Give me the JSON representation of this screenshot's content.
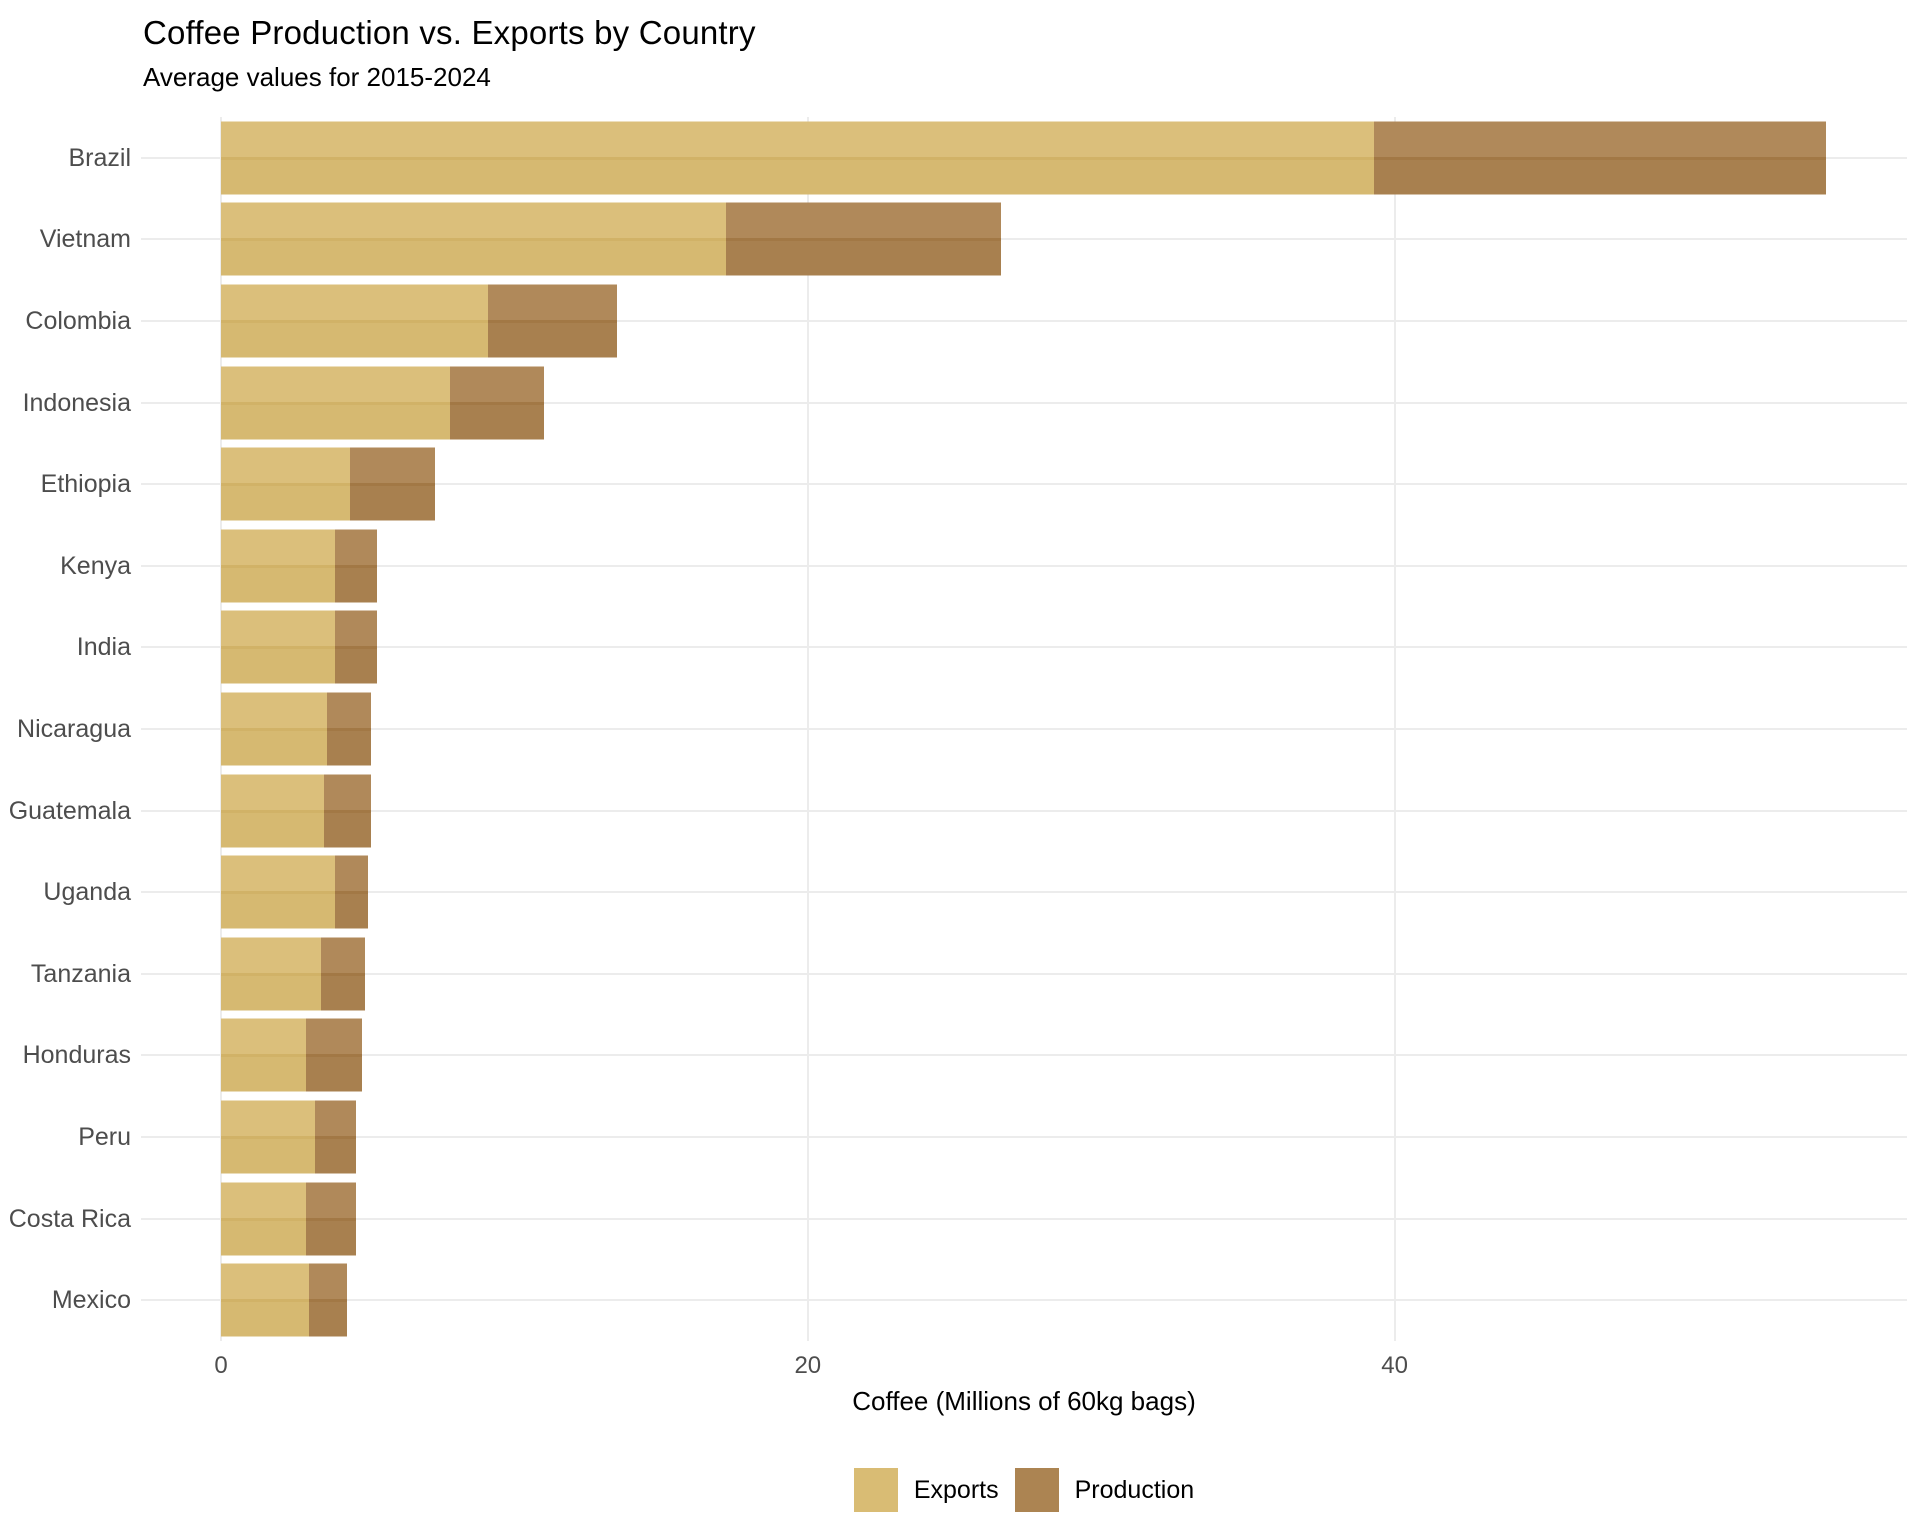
{
  "header": {
    "title": "Coffee Production vs. Exports by Country",
    "subtitle": "Average values for 2015-2024"
  },
  "chart_data": {
    "type": "bar",
    "orientation": "horizontal",
    "title": "Coffee Production vs. Exports by Country",
    "subtitle": "Average values for 2015-2024",
    "xlabel": "Coffee (Millions of 60kg bags)",
    "ylabel": "",
    "x_ticks": [
      0,
      20,
      40
    ],
    "xlim": [
      -2.7,
      57.5
    ],
    "grid": "on",
    "legend_position": "bottom",
    "categories": [
      "Brazil",
      "Vietnam",
      "Colombia",
      "Indonesia",
      "Ethiopia",
      "Kenya",
      "India",
      "Nicaragua",
      "Guatemala",
      "Uganda",
      "Tanzania",
      "Honduras",
      "Peru",
      "Costa Rica",
      "Mexico"
    ],
    "series": [
      {
        "name": "Exports",
        "color": "#D9BC74",
        "values": [
          39.3,
          17.2,
          9.1,
          7.8,
          4.4,
          3.9,
          3.9,
          3.6,
          3.5,
          3.9,
          3.4,
          2.9,
          3.2,
          2.9,
          3.0
        ]
      },
      {
        "name": "Production",
        "color": "#AC8452",
        "values": [
          54.7,
          26.6,
          13.5,
          11.0,
          7.3,
          5.3,
          5.3,
          5.1,
          5.1,
          5.0,
          4.9,
          4.8,
          4.6,
          4.6,
          4.3
        ]
      }
    ]
  },
  "colors": {
    "background": "#FFFFFF",
    "grid": "#ECECEC",
    "axis_text": "#4D4D4D",
    "title_text": "#000000",
    "exports_bar": "#D9BC74",
    "production_bar": "#AC8452"
  },
  "legend": {
    "items": [
      {
        "label": "Exports",
        "color": "#D9BC74"
      },
      {
        "label": "Production",
        "color": "#AC8452"
      }
    ]
  }
}
